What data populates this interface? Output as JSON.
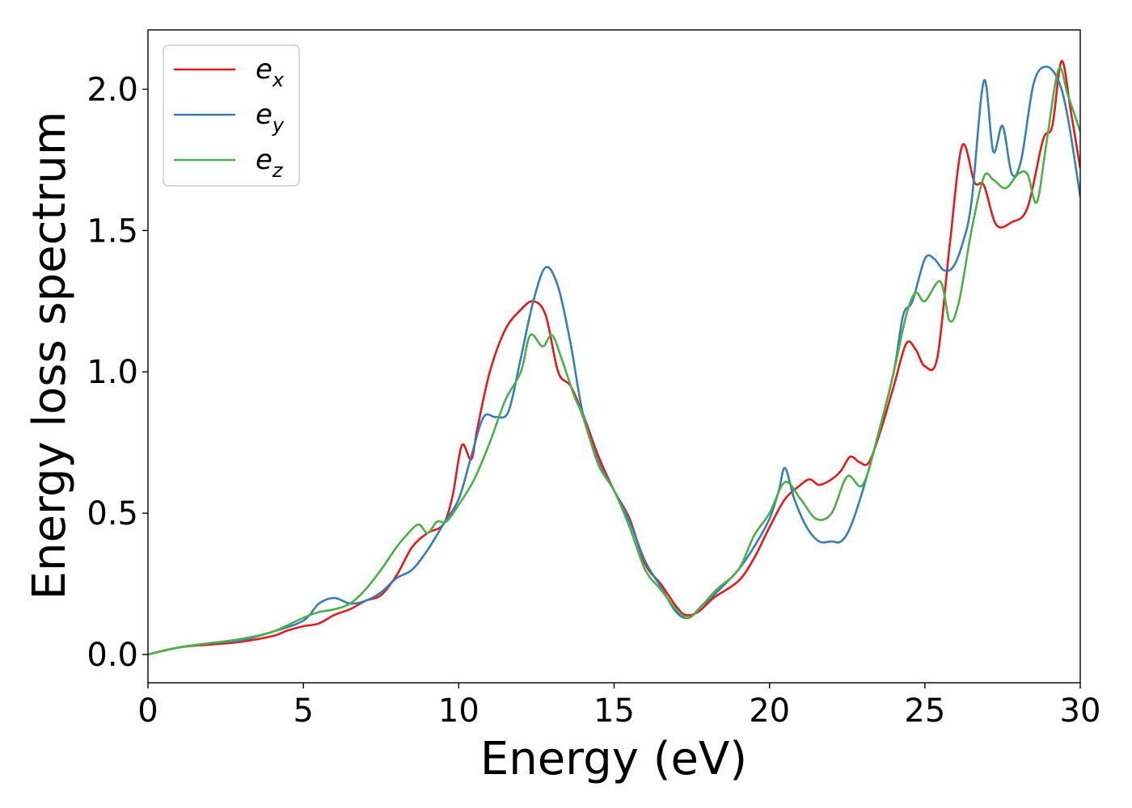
{
  "chart_data": {
    "type": "line",
    "title": "",
    "xlabel": "Energy (eV)",
    "ylabel": "Energy loss spectrum",
    "xlim": [
      0,
      30
    ],
    "ylim": [
      -0.1,
      2.21
    ],
    "xticks": [
      0,
      5,
      10,
      15,
      20,
      25,
      30
    ],
    "xtick_labels": [
      "0",
      "5",
      "10",
      "15",
      "20",
      "25",
      "30"
    ],
    "yticks": [
      0.0,
      0.5,
      1.0,
      1.5,
      2.0
    ],
    "ytick_labels": [
      "0.0",
      "0.5",
      "1.0",
      "1.5",
      "2.0"
    ],
    "grid": false,
    "legend_position": "top-left",
    "series": [
      {
        "name": "e_x",
        "label_base": "e",
        "label_sub": "x",
        "color": "#e41a1c",
        "x": [
          0,
          1,
          2,
          3,
          4,
          4.5,
          5,
          5.5,
          6,
          6.5,
          7,
          7.5,
          8,
          8.5,
          9,
          9.5,
          9.8,
          10.1,
          10.4,
          10.6,
          11,
          11.5,
          12,
          12.4,
          12.8,
          13.2,
          13.6,
          14,
          14.5,
          15,
          15.5,
          16,
          16.5,
          17,
          17.3,
          17.7,
          18.2,
          19,
          19.5,
          20,
          20.5,
          21,
          21.3,
          21.6,
          22,
          22.3,
          22.6,
          22.9,
          23.2,
          23.6,
          24,
          24.4,
          24.7,
          25,
          25.4,
          25.8,
          26.2,
          26.6,
          26.9,
          27.3,
          27.8,
          28.3,
          28.8,
          29.1,
          29.4,
          29.7,
          30
        ],
        "y": [
          0,
          0.025,
          0.035,
          0.045,
          0.065,
          0.085,
          0.1,
          0.11,
          0.14,
          0.16,
          0.19,
          0.21,
          0.28,
          0.38,
          0.43,
          0.46,
          0.56,
          0.74,
          0.69,
          0.8,
          1.0,
          1.15,
          1.22,
          1.25,
          1.2,
          1.0,
          0.95,
          0.85,
          0.7,
          0.58,
          0.48,
          0.32,
          0.25,
          0.17,
          0.14,
          0.15,
          0.2,
          0.26,
          0.34,
          0.45,
          0.55,
          0.6,
          0.62,
          0.6,
          0.62,
          0.65,
          0.7,
          0.68,
          0.68,
          0.8,
          0.95,
          1.1,
          1.08,
          1.02,
          1.05,
          1.45,
          1.8,
          1.67,
          1.66,
          1.52,
          1.53,
          1.58,
          1.82,
          1.87,
          2.1,
          1.92,
          1.72
        ]
      },
      {
        "name": "e_y",
        "label_base": "e",
        "label_sub": "y",
        "color": "#377eb8",
        "x": [
          0,
          1,
          2,
          3,
          4,
          5,
          5.5,
          6,
          6.5,
          7,
          7.5,
          8,
          8.5,
          9,
          9.5,
          10,
          10.4,
          10.8,
          11.2,
          11.6,
          12,
          12.4,
          12.8,
          13.2,
          13.6,
          14,
          14.5,
          15,
          15.5,
          16,
          16.5,
          17,
          17.4,
          17.8,
          18.3,
          19,
          19.5,
          20,
          20.3,
          20.5,
          20.8,
          21.2,
          21.6,
          22,
          22.3,
          22.6,
          23,
          23.5,
          24,
          24.3,
          24.6,
          25,
          25.3,
          25.6,
          25.9,
          26.2,
          26.5,
          26.9,
          27.2,
          27.5,
          27.8,
          28.1,
          28.5,
          28.9,
          29.3,
          29.6,
          30
        ],
        "y": [
          0,
          0.025,
          0.04,
          0.05,
          0.08,
          0.12,
          0.18,
          0.2,
          0.18,
          0.19,
          0.22,
          0.27,
          0.3,
          0.37,
          0.46,
          0.55,
          0.7,
          0.84,
          0.84,
          0.86,
          1.05,
          1.25,
          1.37,
          1.3,
          1.1,
          0.85,
          0.68,
          0.58,
          0.47,
          0.33,
          0.24,
          0.15,
          0.13,
          0.17,
          0.22,
          0.3,
          0.38,
          0.48,
          0.58,
          0.66,
          0.55,
          0.45,
          0.4,
          0.4,
          0.4,
          0.45,
          0.58,
          0.78,
          1.0,
          1.2,
          1.25,
          1.4,
          1.4,
          1.36,
          1.37,
          1.45,
          1.6,
          2.03,
          1.78,
          1.87,
          1.7,
          1.75,
          2.02,
          2.08,
          2.03,
          1.9,
          1.62
        ]
      },
      {
        "name": "e_z",
        "label_base": "e",
        "label_sub": "z",
        "color": "#4daf4a",
        "x": [
          0,
          1,
          2,
          3,
          4,
          5,
          5.5,
          6,
          6.5,
          7,
          7.5,
          8,
          8.3,
          8.7,
          9,
          9.3,
          9.6,
          10,
          10.5,
          11,
          11.5,
          12,
          12.3,
          12.7,
          13,
          13.3,
          13.7,
          14,
          14.5,
          15,
          15.5,
          16,
          16.5,
          17,
          17.4,
          17.8,
          18.3,
          19,
          19.5,
          20,
          20.5,
          21,
          21.5,
          22,
          22.5,
          23,
          23.5,
          24,
          24.4,
          24.7,
          25,
          25.5,
          25.8,
          26.1,
          26.5,
          26.9,
          27.2,
          27.6,
          28,
          28.3,
          28.6,
          28.9,
          29.3,
          29.6,
          30
        ],
        "y": [
          0,
          0.025,
          0.04,
          0.055,
          0.08,
          0.13,
          0.15,
          0.16,
          0.18,
          0.23,
          0.3,
          0.38,
          0.42,
          0.46,
          0.43,
          0.47,
          0.47,
          0.53,
          0.62,
          0.75,
          0.9,
          1.0,
          1.13,
          1.09,
          1.13,
          1.05,
          0.92,
          0.84,
          0.67,
          0.58,
          0.45,
          0.3,
          0.23,
          0.16,
          0.13,
          0.17,
          0.23,
          0.3,
          0.42,
          0.5,
          0.61,
          0.55,
          0.48,
          0.5,
          0.63,
          0.6,
          0.78,
          1.0,
          1.2,
          1.28,
          1.25,
          1.32,
          1.18,
          1.25,
          1.5,
          1.69,
          1.68,
          1.65,
          1.7,
          1.7,
          1.6,
          1.8,
          2.07,
          1.98,
          1.85
        ]
      }
    ]
  }
}
